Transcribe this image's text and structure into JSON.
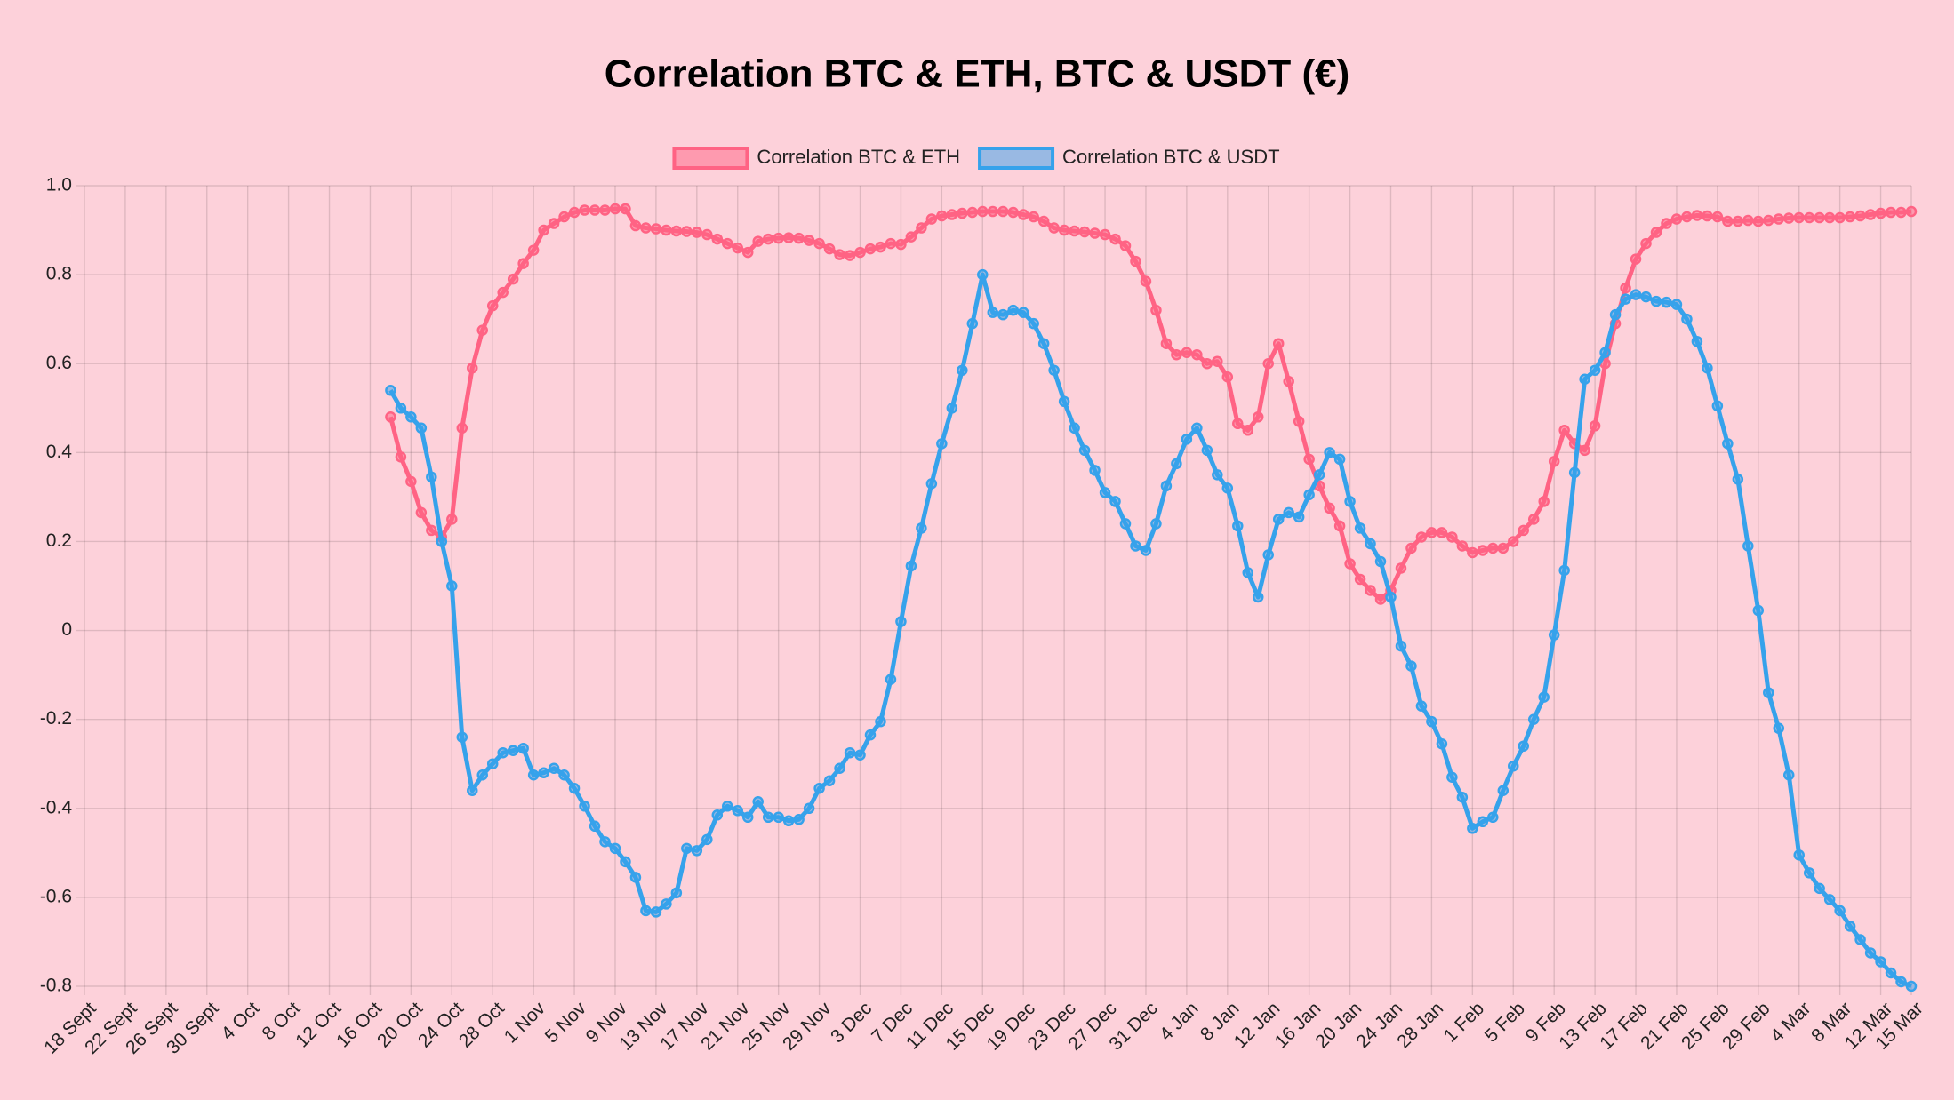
{
  "chart_data": {
    "type": "line",
    "title": "Correlation BTC & ETH, BTC & USDT (€)",
    "legend": "top",
    "grid": true,
    "categories": [
      "18 Sept",
      null,
      null,
      null,
      "22 Sept",
      null,
      null,
      null,
      "26 Sept",
      null,
      null,
      null,
      "30 Sept",
      null,
      null,
      null,
      "4 Oct",
      null,
      null,
      null,
      "8 Oct",
      null,
      null,
      null,
      "12 Oct",
      null,
      null,
      null,
      "16 Oct",
      null,
      null,
      null,
      "20 Oct",
      null,
      null,
      null,
      "24 Oct",
      null,
      null,
      null,
      "28 Oct",
      null,
      null,
      null,
      "1 Nov",
      null,
      null,
      null,
      "5 Nov",
      null,
      null,
      null,
      "9 Nov",
      null,
      null,
      null,
      "13 Nov",
      null,
      null,
      null,
      "17 Nov",
      null,
      null,
      null,
      "21 Nov",
      null,
      null,
      null,
      "25 Nov",
      null,
      null,
      null,
      "29 Nov",
      null,
      null,
      null,
      "3 Dec",
      null,
      null,
      null,
      "7 Dec",
      null,
      null,
      null,
      "11 Dec",
      null,
      null,
      null,
      "15 Dec",
      null,
      null,
      null,
      "19 Dec",
      null,
      null,
      null,
      "23 Dec",
      null,
      null,
      null,
      "27 Dec",
      null,
      null,
      null,
      "31 Dec",
      null,
      null,
      null,
      "4 Jan",
      null,
      null,
      null,
      "8 Jan",
      null,
      null,
      null,
      "12 Jan",
      null,
      null,
      null,
      "16 Jan",
      null,
      null,
      null,
      "20 Jan",
      null,
      null,
      null,
      "24 Jan",
      null,
      null,
      null,
      "28 Jan",
      null,
      null,
      null,
      "1 Feb",
      null,
      null,
      null,
      "5 Feb",
      null,
      null,
      null,
      "9 Feb",
      null,
      null,
      null,
      "13 Feb",
      null,
      null,
      null,
      "17 Feb",
      null,
      null,
      null,
      "21 Feb",
      null,
      null,
      null,
      "25 Feb",
      null,
      null,
      null,
      "29 Feb",
      null,
      null,
      null,
      "4 Mar",
      null,
      null,
      null,
      "8 Mar",
      null,
      null,
      null,
      "12 Mar",
      null,
      null,
      "15 Mar"
    ],
    "series": [
      {
        "name": "Correlation BTC & ETH",
        "color": "#ff6384",
        "values": [
          null,
          null,
          null,
          null,
          null,
          null,
          null,
          null,
          null,
          null,
          null,
          null,
          null,
          null,
          null,
          null,
          null,
          null,
          null,
          null,
          null,
          null,
          null,
          null,
          null,
          null,
          null,
          null,
          null,
          null,
          0.48,
          0.39,
          0.335,
          0.265,
          0.225,
          0.21,
          0.25,
          0.455,
          0.59,
          0.675,
          0.73,
          0.76,
          0.79,
          0.825,
          0.855,
          0.9,
          0.915,
          0.93,
          0.94,
          0.945,
          0.945,
          0.945,
          0.948,
          0.948,
          0.91,
          0.905,
          0.903,
          0.9,
          0.898,
          0.897,
          0.895,
          0.89,
          0.88,
          0.87,
          0.86,
          0.85,
          0.875,
          0.88,
          0.882,
          0.883,
          0.882,
          0.877,
          0.87,
          0.858,
          0.845,
          0.843,
          0.85,
          0.858,
          0.862,
          0.87,
          0.868,
          0.885,
          0.905,
          0.925,
          0.932,
          0.935,
          0.938,
          0.94,
          0.942,
          0.942,
          0.942,
          0.94,
          0.935,
          0.93,
          0.92,
          0.905,
          0.9,
          0.898,
          0.896,
          0.893,
          0.89,
          0.88,
          0.865,
          0.83,
          0.785,
          0.72,
          0.645,
          0.62,
          0.625,
          0.62,
          0.6,
          0.605,
          0.57,
          0.465,
          0.45,
          0.48,
          0.6,
          0.645,
          0.56,
          0.47,
          0.385,
          0.325,
          0.275,
          0.235,
          0.15,
          0.115,
          0.09,
          0.07,
          0.09,
          0.14,
          0.185,
          0.21,
          0.22,
          0.22,
          0.21,
          0.19,
          0.175,
          0.18,
          0.185,
          0.185,
          0.2,
          0.225,
          0.25,
          0.29,
          0.38,
          0.45,
          0.42,
          0.405,
          0.46,
          0.6,
          0.69,
          0.77,
          0.835,
          0.87,
          0.895,
          0.915,
          0.925,
          0.93,
          0.933,
          0.932,
          0.93,
          0.92,
          0.92,
          0.922,
          0.92,
          0.922,
          0.925,
          0.927,
          0.928,
          0.928,
          0.928,
          0.928,
          0.928,
          0.93,
          0.932,
          0.935,
          0.938,
          0.94,
          0.94,
          0.942
        ]
      },
      {
        "name": "Correlation BTC & USDT",
        "color": "#36a2eb",
        "values": [
          null,
          null,
          null,
          null,
          null,
          null,
          null,
          null,
          null,
          null,
          null,
          null,
          null,
          null,
          null,
          null,
          null,
          null,
          null,
          null,
          null,
          null,
          null,
          null,
          null,
          null,
          null,
          null,
          null,
          null,
          0.54,
          0.5,
          0.48,
          0.455,
          0.345,
          0.2,
          0.1,
          -0.24,
          -0.36,
          -0.325,
          -0.3,
          -0.275,
          -0.27,
          -0.265,
          -0.325,
          -0.32,
          -0.31,
          -0.325,
          -0.355,
          -0.395,
          -0.44,
          -0.475,
          -0.49,
          -0.52,
          -0.555,
          -0.63,
          -0.633,
          -0.615,
          -0.59,
          -0.49,
          -0.495,
          -0.47,
          -0.415,
          -0.395,
          -0.405,
          -0.42,
          -0.385,
          -0.42,
          -0.42,
          -0.428,
          -0.425,
          -0.4,
          -0.355,
          -0.338,
          -0.31,
          -0.275,
          -0.28,
          -0.235,
          -0.205,
          -0.11,
          0.02,
          0.145,
          0.23,
          0.33,
          0.42,
          0.5,
          0.585,
          0.69,
          0.8,
          0.715,
          0.71,
          0.72,
          0.715,
          0.69,
          0.645,
          0.585,
          0.515,
          0.455,
          0.405,
          0.36,
          0.31,
          0.29,
          0.24,
          0.19,
          0.18,
          0.24,
          0.325,
          0.375,
          0.43,
          0.455,
          0.405,
          0.35,
          0.32,
          0.235,
          0.13,
          0.075,
          0.17,
          0.25,
          0.265,
          0.255,
          0.305,
          0.35,
          0.4,
          0.385,
          0.29,
          0.23,
          0.195,
          0.155,
          0.075,
          -0.035,
          -0.08,
          -0.17,
          -0.205,
          -0.255,
          -0.33,
          -0.375,
          -0.445,
          -0.43,
          -0.42,
          -0.36,
          -0.305,
          -0.26,
          -0.2,
          -0.15,
          -0.01,
          0.135,
          0.355,
          0.565,
          0.585,
          0.625,
          0.71,
          0.745,
          0.755,
          0.75,
          0.74,
          0.738,
          0.733,
          0.7,
          0.65,
          0.59,
          0.505,
          0.42,
          0.34,
          0.19,
          0.045,
          -0.14,
          -0.22,
          -0.325,
          -0.505,
          -0.545,
          -0.58,
          -0.605,
          -0.63,
          -0.665,
          -0.695,
          -0.725,
          -0.745,
          -0.77,
          -0.79,
          -0.8
        ]
      }
    ],
    "ylim": [
      -0.8,
      1
    ],
    "yticks": [
      {
        "value": 1,
        "label": "1.0"
      },
      0.8,
      0.6,
      0.4,
      0.2,
      0,
      -0.2,
      -0.4,
      -0.6,
      -0.8
    ]
  }
}
